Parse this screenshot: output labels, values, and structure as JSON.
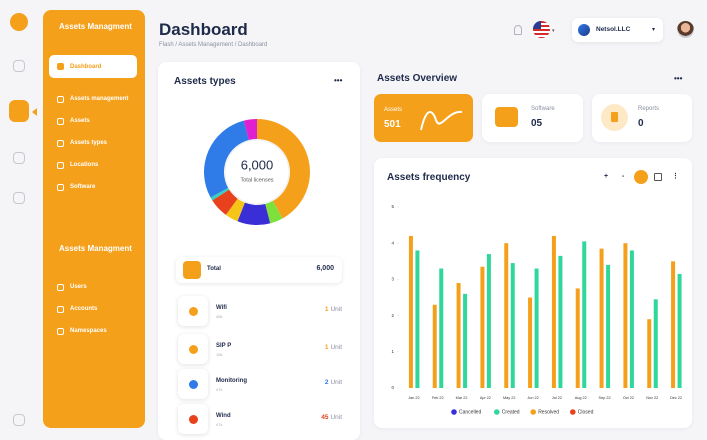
{
  "sidebar": {
    "sections": [
      {
        "title": "Assets Managment",
        "items": [
          "Dashboard",
          "Assets management",
          "Assets",
          "Assets types",
          "Locations",
          "Software"
        ]
      },
      {
        "title": "Assets Managment",
        "items": [
          "Users",
          "Accounts",
          "Namespaces"
        ]
      }
    ]
  },
  "header": {
    "title": "Dashboard",
    "breadcrumb": "Flash / Assets Management / Dashboard",
    "company": "Netsol.LLC"
  },
  "assets_types": {
    "title": "Assets types",
    "menu": "•••",
    "center_value": "6,000",
    "center_label": "Total licenses",
    "segments": [
      {
        "color": "#f5a01a",
        "value": 42
      },
      {
        "color": "#7ee03a",
        "value": 4
      },
      {
        "color": "#3a2fd6",
        "value": 10
      },
      {
        "color": "#f5c518",
        "value": 4
      },
      {
        "color": "#e8411e",
        "value": 6
      },
      {
        "color": "#35d0c0",
        "value": 1
      },
      {
        "color": "#2f7be8",
        "value": 29
      },
      {
        "color": "#e020d0",
        "value": 4
      }
    ],
    "total": {
      "label": "Total",
      "value": "6,000"
    },
    "items": [
      {
        "name": "Wifi",
        "sub": "45k",
        "count": "1",
        "unit": "Unit",
        "color": "#f5a01a"
      },
      {
        "name": "SIP P",
        "sub": "15k",
        "count": "1",
        "unit": "Unit",
        "color": "#f5a01a"
      },
      {
        "name": "Monitoring",
        "sub": "47k",
        "count": "2",
        "unit": "Unit",
        "color": "#2f7be8"
      },
      {
        "name": "Wind",
        "sub": "47k",
        "count": "45",
        "unit": "Unit",
        "color": "#e8411e"
      }
    ]
  },
  "overview": {
    "title": "Assets Overview",
    "menu": "•••",
    "cards": [
      {
        "label": "Assets",
        "value": "501"
      },
      {
        "label": "Software",
        "value": "05"
      },
      {
        "label": "Reports",
        "value": "0"
      }
    ]
  },
  "frequency_toolbar": [
    "+",
    "-"
  ],
  "chart_data": {
    "type": "bar",
    "title": "Assets frequency",
    "menu": "⋮",
    "categories": [
      "Jan 22",
      "Feb 22",
      "Mar 22",
      "Apr 22",
      "May 22",
      "Jun 22",
      "Jul 22",
      "Aug 22",
      "Sep 22",
      "Oct 22",
      "Nov 22",
      "Dec 22"
    ],
    "series": [
      {
        "name": "Cancelled",
        "color": "#3a2fd6",
        "values": [
          null,
          null,
          null,
          null,
          null,
          null,
          null,
          null,
          null,
          null,
          null,
          null
        ]
      },
      {
        "name": "Created",
        "color": "#2fd89a",
        "values": [
          3.8,
          3.3,
          2.6,
          3.7,
          3.45,
          3.3,
          3.65,
          4.05,
          3.4,
          3.8,
          2.45,
          3.15
        ]
      },
      {
        "name": "Resolved",
        "color": "#f5a01a",
        "values": [
          4.2,
          2.3,
          2.9,
          3.35,
          4.0,
          2.5,
          4.2,
          2.75,
          3.85,
          4.0,
          1.9,
          3.5
        ]
      },
      {
        "name": "Closed",
        "color": "#e8411e",
        "values": [
          null,
          null,
          null,
          null,
          null,
          null,
          null,
          null,
          null,
          null,
          null,
          null
        ]
      }
    ],
    "ylim": [
      0,
      5
    ],
    "yticks": [
      0,
      1,
      2,
      3,
      4,
      5
    ],
    "legend": "bottom"
  }
}
